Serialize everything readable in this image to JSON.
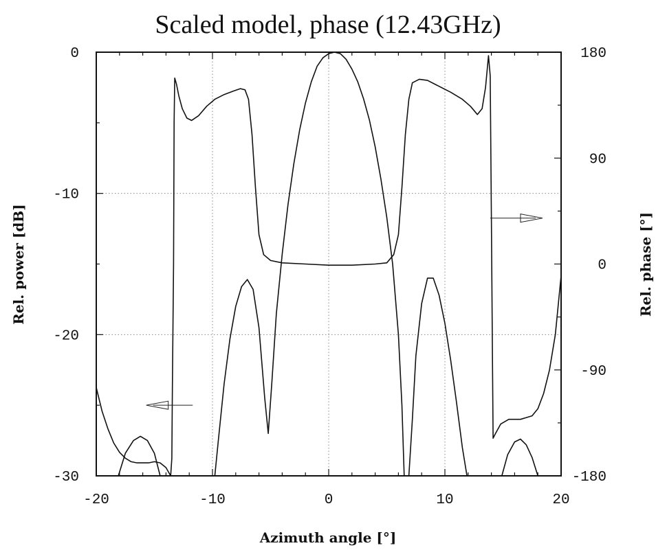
{
  "chart_data": {
    "type": "line",
    "title": "Scaled model,  phase (12.43GHz)",
    "xlabel": "Azimuth angle [°]",
    "ylabel_left": "Rel. power [dB]",
    "ylabel_right": "Rel. phase [°]",
    "xlim": [
      -20,
      20
    ],
    "ylim_left": [
      -30,
      0
    ],
    "ylim_right": [
      -180,
      180
    ],
    "x_ticks": [
      "-20",
      "-10",
      "0",
      "10",
      "20"
    ],
    "x_tick_values": [
      -20,
      -10,
      0,
      10,
      20
    ],
    "y_ticks_left": [
      "0",
      "-10",
      "-20",
      "-30"
    ],
    "y_tick_values_left": [
      0,
      -10,
      -20,
      -30
    ],
    "y_ticks_right": [
      "180",
      "90",
      "0",
      "-90",
      "-180"
    ],
    "y_tick_values_right": [
      180,
      90,
      0,
      -90,
      -180
    ],
    "grid": true,
    "series": [
      {
        "axis": "left",
        "segments": [
          [
            [
              -18.1,
              -30
            ],
            [
              -17.5,
              -28.4
            ],
            [
              -16.8,
              -27.5
            ],
            [
              -16.2,
              -27.2
            ],
            [
              -15.6,
              -27.5
            ],
            [
              -15.0,
              -28.4
            ],
            [
              -14.5,
              -30
            ]
          ],
          [
            [
              -9.8,
              -30
            ],
            [
              -9.5,
              -27.5
            ],
            [
              -9.0,
              -23.5
            ],
            [
              -8.5,
              -20.3
            ],
            [
              -8.0,
              -18.0
            ],
            [
              -7.5,
              -16.6
            ],
            [
              -7.0,
              -16.1
            ],
            [
              -6.5,
              -16.8
            ],
            [
              -6.0,
              -19.5
            ],
            [
              -5.5,
              -24.5
            ],
            [
              -5.2,
              -27.0
            ],
            [
              -4.9,
              -23.5
            ],
            [
              -4.5,
              -18.5
            ],
            [
              -4.0,
              -14.3
            ],
            [
              -3.5,
              -10.8
            ],
            [
              -3.0,
              -7.9
            ],
            [
              -2.5,
              -5.5
            ],
            [
              -2.0,
              -3.6
            ],
            [
              -1.5,
              -2.1
            ],
            [
              -1.0,
              -1.0
            ],
            [
              -0.5,
              -0.4
            ],
            [
              0.0,
              -0.1
            ],
            [
              0.5,
              0.0
            ],
            [
              1.0,
              -0.1
            ],
            [
              1.5,
              -0.5
            ],
            [
              2.0,
              -1.2
            ],
            [
              2.5,
              -2.1
            ],
            [
              3.0,
              -3.3
            ],
            [
              3.5,
              -4.8
            ],
            [
              4.0,
              -6.7
            ],
            [
              4.5,
              -9.0
            ],
            [
              5.0,
              -11.7
            ],
            [
              5.5,
              -15.0
            ],
            [
              6.0,
              -20.0
            ],
            [
              6.3,
              -25.0
            ],
            [
              6.5,
              -30
            ]
          ],
          [
            [
              6.9,
              -30
            ],
            [
              7.2,
              -26.0
            ],
            [
              7.5,
              -21.5
            ],
            [
              8.0,
              -17.8
            ],
            [
              8.5,
              -16.0
            ],
            [
              9.0,
              -16.0
            ],
            [
              9.5,
              -17.2
            ],
            [
              10.0,
              -19.2
            ],
            [
              10.5,
              -21.8
            ],
            [
              11.0,
              -24.8
            ],
            [
              11.5,
              -28.0
            ],
            [
              11.9,
              -30
            ]
          ],
          [
            [
              14.9,
              -30
            ],
            [
              15.4,
              -28.5
            ],
            [
              16.0,
              -27.6
            ],
            [
              16.5,
              -27.4
            ],
            [
              17.0,
              -27.8
            ],
            [
              17.5,
              -28.7
            ],
            [
              18.0,
              -30
            ]
          ]
        ]
      },
      {
        "axis": "right",
        "segments": [
          [
            [
              -20.0,
              -105
            ],
            [
              -19.5,
              -125
            ],
            [
              -19.0,
              -140
            ],
            [
              -18.5,
              -152
            ],
            [
              -18.0,
              -160
            ],
            [
              -17.5,
              -165
            ],
            [
              -17.0,
              -168
            ],
            [
              -16.5,
              -169
            ],
            [
              -15.5,
              -169
            ],
            [
              -15.0,
              -168
            ],
            [
              -14.5,
              -169
            ],
            [
              -14.0,
              -173
            ],
            [
              -13.6,
              -180
            ],
            [
              -13.5,
              -165
            ],
            [
              -13.45,
              -105
            ],
            [
              -13.35,
              0
            ],
            [
              -13.3,
              120
            ],
            [
              -13.25,
              158
            ],
            [
              -13.1,
              153
            ],
            [
              -12.9,
              143
            ],
            [
              -12.6,
              132
            ],
            [
              -12.2,
              124
            ],
            [
              -11.8,
              122
            ],
            [
              -11.2,
              126
            ],
            [
              -10.5,
              134
            ],
            [
              -9.8,
              140
            ],
            [
              -9.0,
              144
            ],
            [
              -8.2,
              147
            ],
            [
              -7.6,
              149
            ],
            [
              -7.2,
              148
            ],
            [
              -6.9,
              140
            ],
            [
              -6.6,
              110
            ],
            [
              -6.3,
              65
            ],
            [
              -6.0,
              25
            ],
            [
              -5.6,
              8
            ],
            [
              -5.0,
              3
            ],
            [
              -4.0,
              1
            ],
            [
              -2.0,
              0
            ],
            [
              0.0,
              -1
            ],
            [
              2.0,
              -1
            ],
            [
              4.0,
              0
            ],
            [
              5.0,
              1
            ],
            [
              5.6,
              8
            ],
            [
              6.0,
              25
            ],
            [
              6.3,
              65
            ],
            [
              6.6,
              110
            ],
            [
              6.9,
              140
            ],
            [
              7.2,
              154
            ],
            [
              7.8,
              157
            ],
            [
              8.5,
              156
            ],
            [
              9.5,
              151
            ],
            [
              10.5,
              146
            ],
            [
              11.5,
              140
            ],
            [
              12.2,
              134
            ],
            [
              12.8,
              127
            ],
            [
              13.2,
              132
            ],
            [
              13.5,
              150
            ],
            [
              13.75,
              177
            ],
            [
              13.9,
              160
            ],
            [
              14.0,
              40
            ],
            [
              14.1,
              -90
            ],
            [
              14.15,
              -148
            ],
            [
              14.3,
              -145
            ],
            [
              14.8,
              -136
            ],
            [
              15.5,
              -132
            ],
            [
              16.5,
              -132
            ],
            [
              17.5,
              -129
            ],
            [
              18.0,
              -123
            ],
            [
              18.5,
              -110
            ],
            [
              19.0,
              -90
            ],
            [
              19.5,
              -60
            ],
            [
              20.0,
              -10
            ]
          ]
        ]
      }
    ],
    "annotations": [
      {
        "type": "arrow",
        "direction": "right",
        "axis": "right",
        "x_from": 13.9,
        "x_to": 18.4,
        "y": 39
      },
      {
        "type": "arrow",
        "direction": "left",
        "axis": "left",
        "x_from": -11.7,
        "x_to": -15.7,
        "y": -25.0
      }
    ]
  }
}
